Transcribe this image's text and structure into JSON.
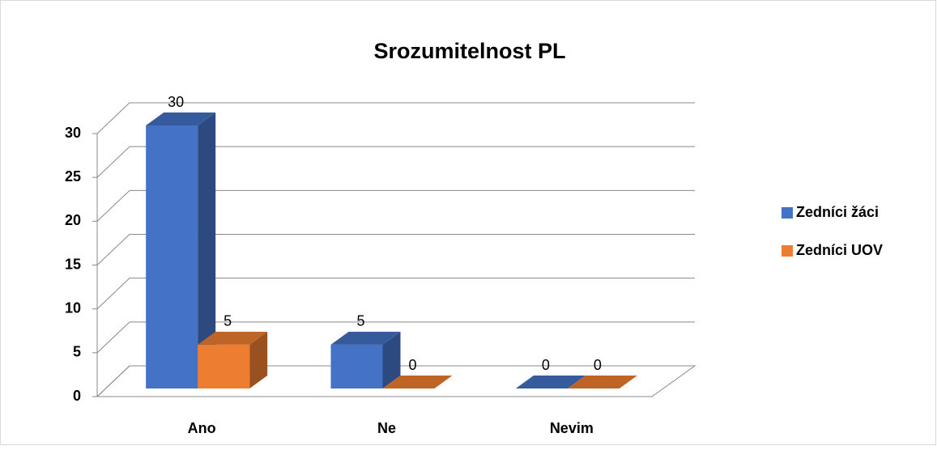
{
  "chart_data": {
    "type": "bar3d",
    "title": "Srozumitelnost PL",
    "categories": [
      "Ano",
      "Ne",
      "Nevim"
    ],
    "series": [
      {
        "name": "Zedníci žáci",
        "color": "#4472c4",
        "values": [
          30,
          5,
          0
        ]
      },
      {
        "name": "Zedníci UOV",
        "color": "#ed7d31",
        "values": [
          5,
          0,
          0
        ]
      }
    ],
    "ylim": [
      0,
      30
    ],
    "yticks": [
      0,
      5,
      10,
      15,
      20,
      25,
      30
    ],
    "grid": true,
    "legend": "right"
  }
}
